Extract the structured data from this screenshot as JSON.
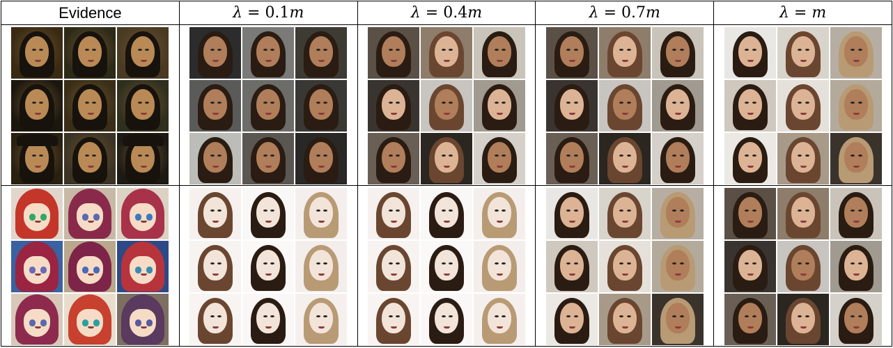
{
  "headers": [
    {
      "kind": "plain",
      "text": "Evidence"
    },
    {
      "kind": "math",
      "lhs": "λ",
      "eq": " = ",
      "num": "0.1",
      "var": "m"
    },
    {
      "kind": "math",
      "lhs": "λ",
      "eq": " = ",
      "num": "0.4",
      "var": "m"
    },
    {
      "kind": "math",
      "lhs": "λ",
      "eq": " = ",
      "num": "0.7",
      "var": "m"
    },
    {
      "kind": "math",
      "lhs": "λ",
      "eq": " = ",
      "num": "",
      "var": "m"
    }
  ],
  "rows": [
    {
      "name": "portrait-row",
      "cells": [
        {
          "style": "rembrandt",
          "tiles": 9
        },
        {
          "style": "realistic-dark",
          "tiles": 9
        },
        {
          "style": "realistic-mixed",
          "tiles": 9
        },
        {
          "style": "realistic-mixed",
          "tiles": 9
        },
        {
          "style": "realistic-light",
          "tiles": 9
        }
      ]
    },
    {
      "name": "anime-row",
      "cells": [
        {
          "style": "anime",
          "tiles": 9
        },
        {
          "style": "sketch-light",
          "tiles": 9
        },
        {
          "style": "sketch-light",
          "tiles": 9
        },
        {
          "style": "realistic-light",
          "tiles": 9
        },
        {
          "style": "realistic-mixed",
          "tiles": 9
        }
      ]
    }
  ],
  "colors": {
    "rembrandt_bg": [
      "#3a2a12",
      "#2e2a18",
      "#4a3a22",
      "#1c170e",
      "#3a2e18",
      "#2f2f1e",
      "#2a2010",
      "#3b3324",
      "#1d1a14"
    ],
    "rembrandt_skin": "#b98a55",
    "rembrandt_hat": "#17120c",
    "realistic_dark_bg": [
      "#2c2c2c",
      "#7a7a78",
      "#3e3a34",
      "#5a5a58",
      "#6c6c68",
      "#3a3834",
      "#bcbcb8",
      "#5a5652",
      "#2a2826"
    ],
    "realistic_light_bg": [
      "#e9e7e3",
      "#d8d4cc",
      "#b7aea3",
      "#cfc8be",
      "#e5e1da",
      "#b4aa9b",
      "#ece9e4",
      "#a79a88",
      "#3a332c"
    ],
    "realistic_mixed_bg": [
      "#5a5046",
      "#8d7d6a",
      "#c9c3b9",
      "#3a3430",
      "#c8c5c0",
      "#a09a90",
      "#6a5f55",
      "#2c2620",
      "#d5d1ca"
    ],
    "sketch_bg": [
      "#f6f1ef",
      "#faf8f7",
      "#f4efed",
      "#f7f3f1",
      "#fbf9f8",
      "#f3eeec",
      "#f8f4f2",
      "#faf7f6",
      "#f5f0ee"
    ],
    "anime_bg": [
      "#e0d6cc",
      "#c7b9a6",
      "#dcd2c3",
      "#3a62a0",
      "#b9a88c",
      "#2d4a86",
      "#d8c8b8",
      "#e8ddcc",
      "#7d6f62"
    ],
    "anime_hair": [
      "#c4362a",
      "#8a2a4a",
      "#a8324a",
      "#9a2442",
      "#7e2448",
      "#b8343c",
      "#8d2a4e",
      "#c8402e",
      "#5a3a5e"
    ],
    "anime_eye": [
      "#2fa86a",
      "#5a6ab0",
      "#3c7ac0",
      "#6a6ab8",
      "#4a6ab8",
      "#3c8ab0",
      "#5a6ab0",
      "#2aa0a0",
      "#5a5aa0"
    ],
    "skin_dark": "#b07e5a",
    "skin_light": "#dcb394",
    "skin_sketch": "#f2e4d8",
    "hair_dark": "#2a1c12",
    "hair_brown": "#6a4630",
    "hair_light": "#b89a74"
  }
}
